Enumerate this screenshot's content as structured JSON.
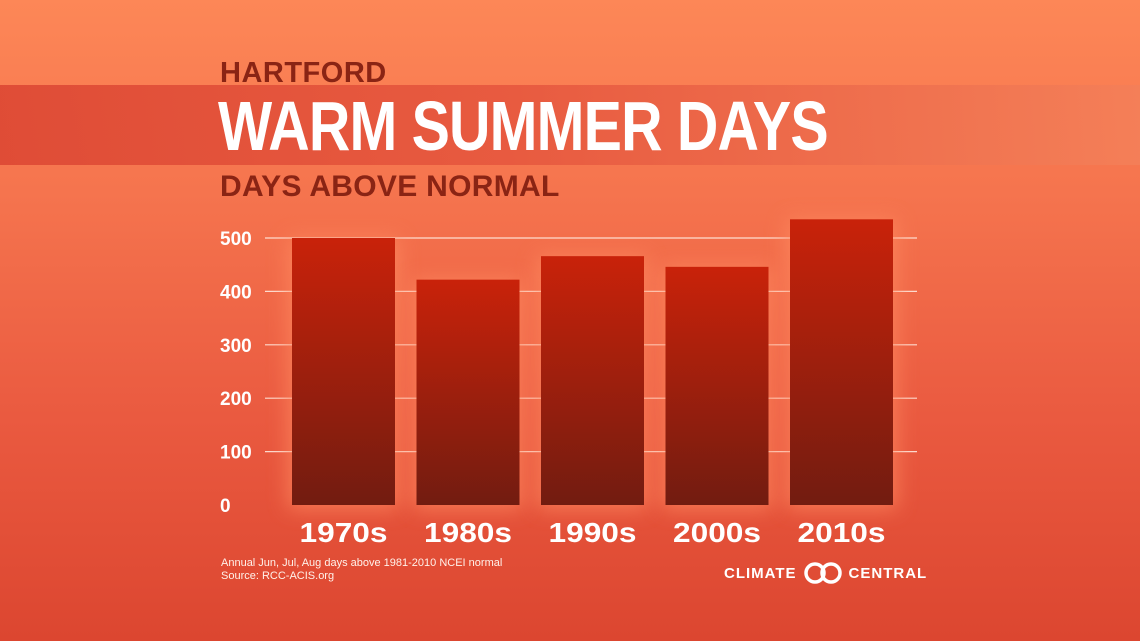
{
  "header": {
    "city": "HARTFORD",
    "title": "WARM SUMMER DAYS",
    "subtitle": "DAYS ABOVE NORMAL"
  },
  "chart_data": {
    "type": "bar",
    "title": "WARM SUMMER DAYS",
    "subtitle": "DAYS ABOVE NORMAL",
    "categories": [
      "1970s",
      "1980s",
      "1990s",
      "2000s",
      "2010s"
    ],
    "values": [
      500,
      422,
      466,
      446,
      535
    ],
    "yticks": [
      0,
      100,
      200,
      300,
      400,
      500
    ],
    "ylim": [
      0,
      500
    ],
    "grid": true,
    "colors": {
      "bar_top": "#c9220a",
      "bar_bottom": "#721c10",
      "grid": "#ffe9df"
    }
  },
  "footer": {
    "note_line1": "Annual Jun, Jul, Aug days above 1981-2010 NCEI normal",
    "note_line2": "Source: RCC-ACIS.org",
    "brand_left": "CLIMATE",
    "brand_right": "CENTRAL",
    "brand_icon": "climate-central-logo-icon"
  }
}
